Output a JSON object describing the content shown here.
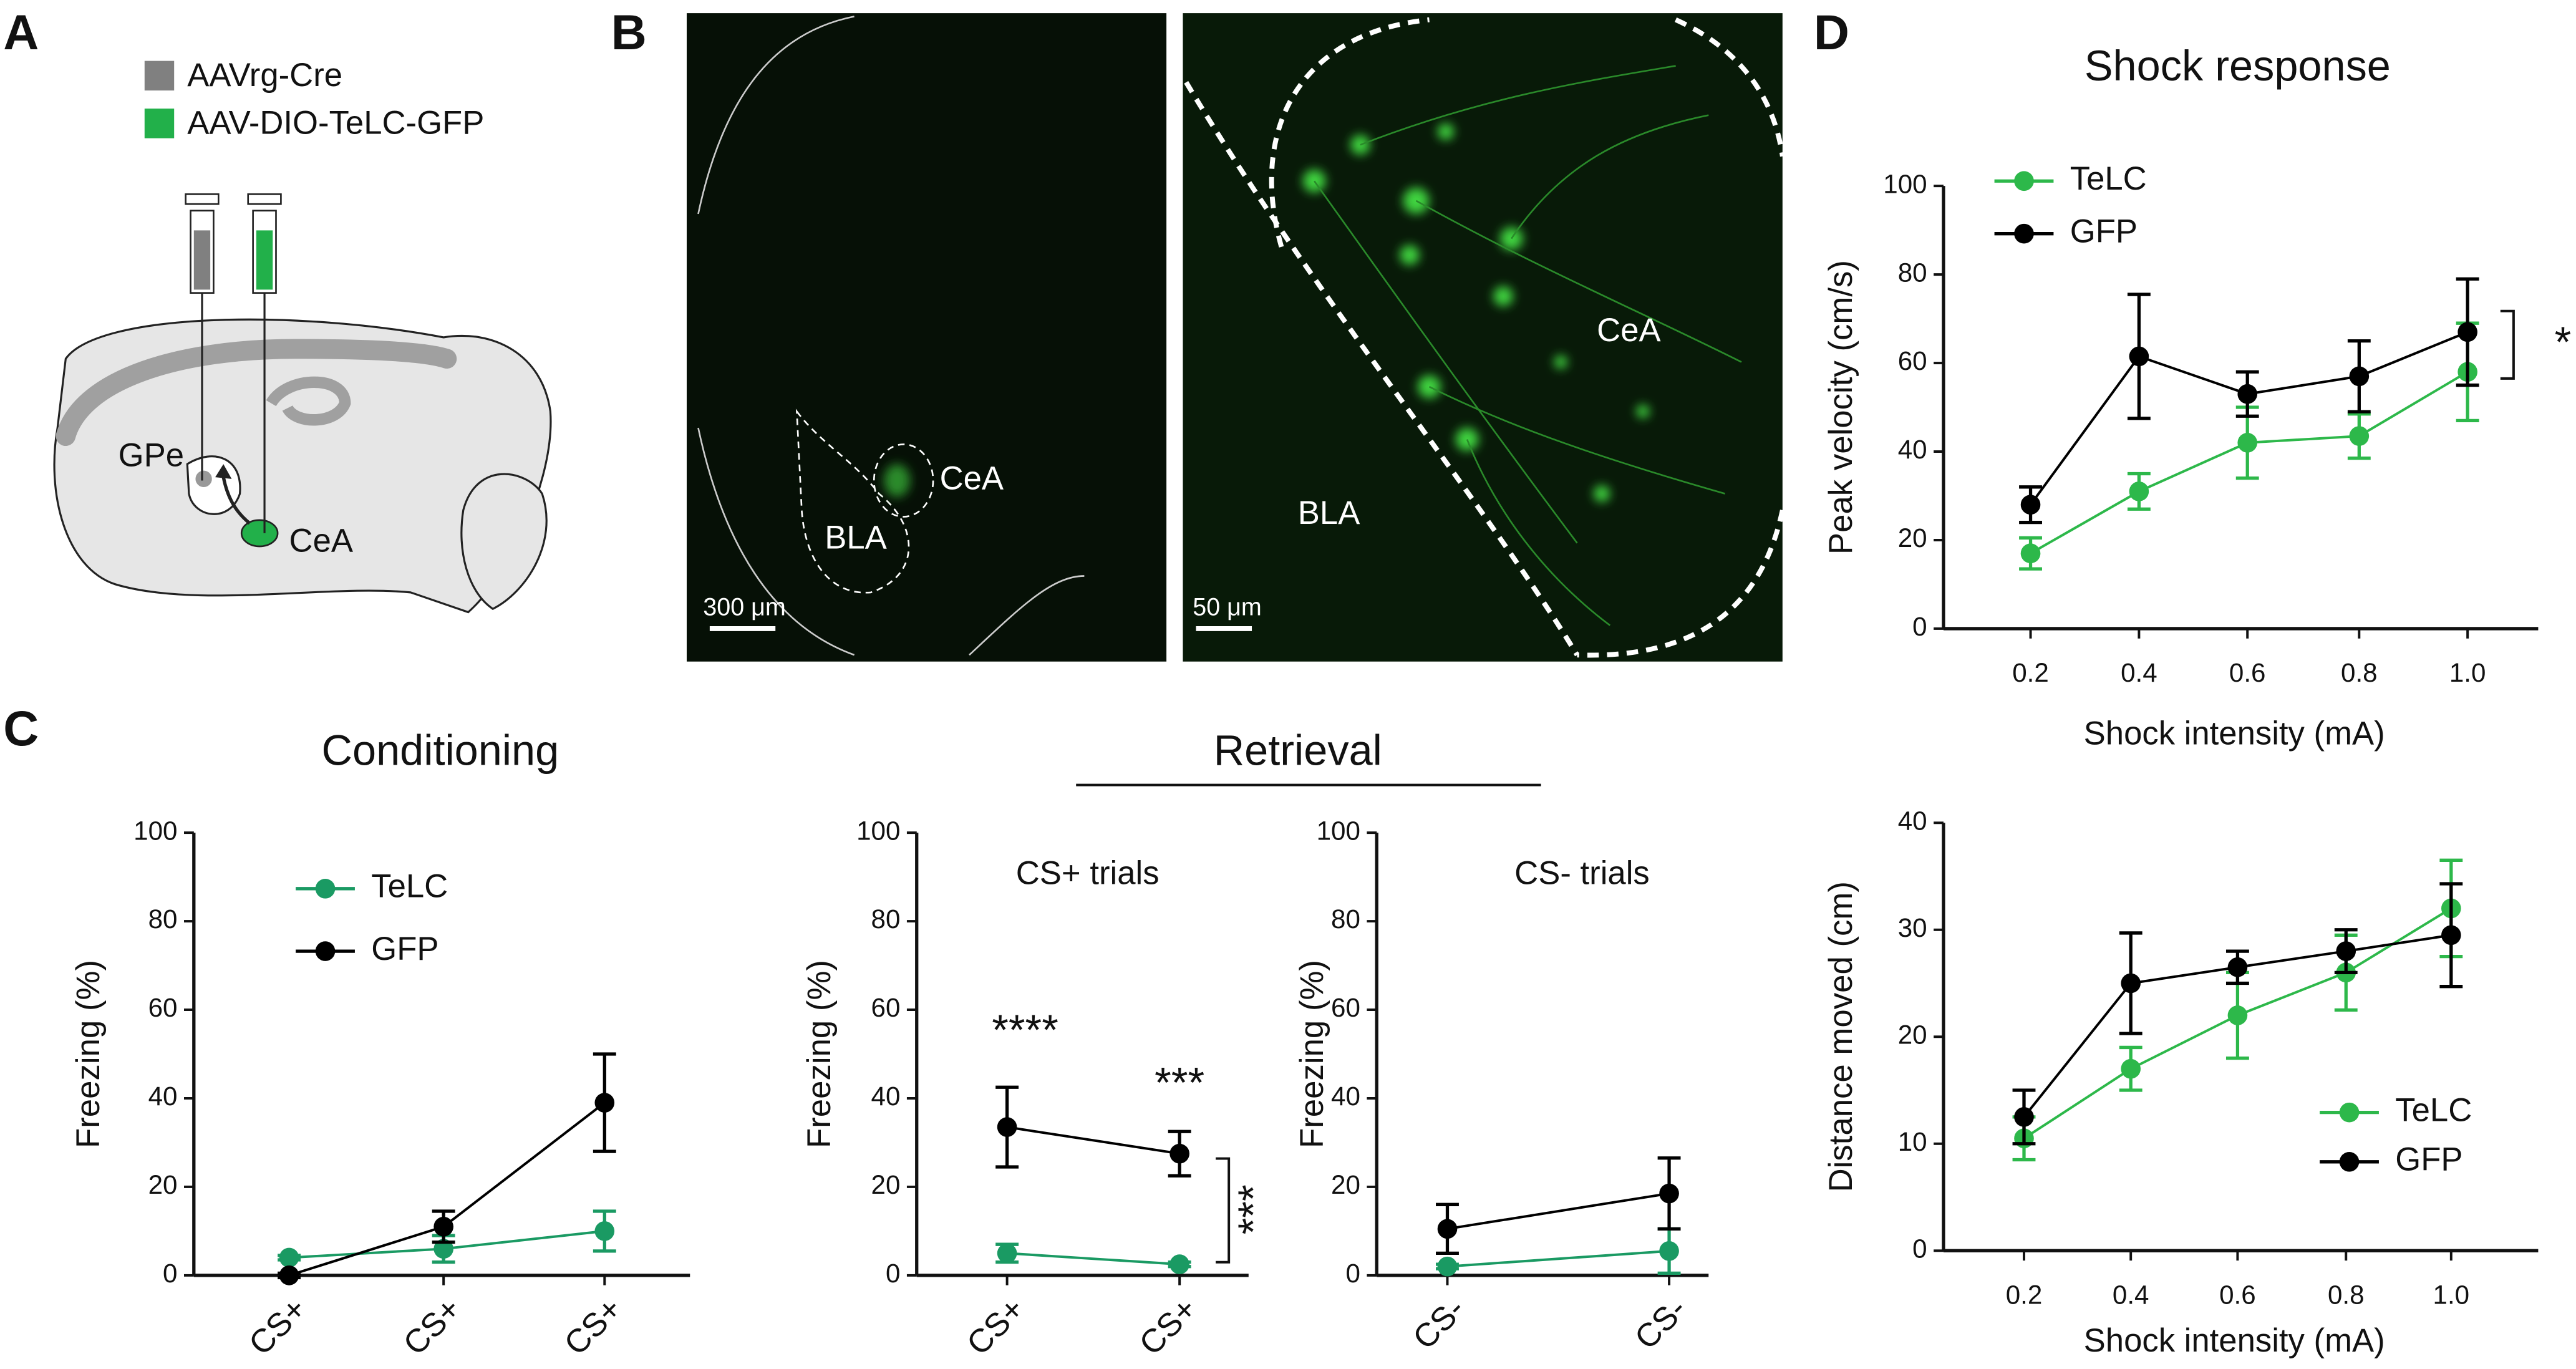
{
  "figure": {
    "panel_labels": [
      "A",
      "B",
      "C",
      "D"
    ],
    "panel_a": {
      "legend": [
        "AAVrg-Cre",
        "AAV-DIO-TeLC-GFP"
      ],
      "legend_colors": [
        "#808080",
        "#22b04a"
      ],
      "labels": [
        "GPe",
        "CeA"
      ]
    },
    "panel_b": {
      "labels": [
        "CeA",
        "BLA",
        "CeA",
        "BLA"
      ],
      "scale_bars": [
        "300 μm",
        "50 μm"
      ]
    },
    "retrieval_title": "Retrieval"
  },
  "chart_data": [
    {
      "type": "line",
      "title": "Conditioning",
      "ylabel": "Freezing (%)",
      "categories": [
        "CS+",
        "CS+",
        "CS+"
      ],
      "series": [
        {
          "name": "TeLC",
          "color": "#1a9a63",
          "values": [
            4,
            6,
            10
          ],
          "errors": [
            0.5,
            3,
            4.5
          ]
        },
        {
          "name": "GFP",
          "color": "#000000",
          "values": [
            0,
            11,
            39
          ],
          "errors": [
            0.5,
            3.5,
            11
          ]
        }
      ],
      "ylim": [
        0,
        100
      ],
      "yticks": [
        0,
        20,
        40,
        60,
        80,
        100
      ],
      "legend": "upper left"
    },
    {
      "type": "line",
      "title": "CS+ trials",
      "ylabel": "Freezing (%)",
      "categories": [
        "CS+",
        "CS+"
      ],
      "series": [
        {
          "color": "#1a9a63",
          "values": [
            5,
            2.5
          ],
          "errors": [
            2,
            0.5
          ]
        },
        {
          "color": "#000000",
          "values": [
            33.5,
            27.5
          ],
          "errors": [
            9,
            5
          ]
        }
      ],
      "ylim": [
        0,
        100
      ],
      "yticks": [
        0,
        20,
        40,
        60,
        80,
        100
      ],
      "annotations": [
        "****",
        "***"
      ],
      "bracket_annotation": "***"
    },
    {
      "type": "line",
      "title": "CS- trials",
      "ylabel": "Freezing (%)",
      "categories": [
        "CS-",
        "CS-"
      ],
      "series": [
        {
          "color": "#1a9a63",
          "values": [
            2,
            5.5
          ],
          "errors": [
            0.5,
            5
          ]
        },
        {
          "color": "#000000",
          "values": [
            10.5,
            18.5
          ],
          "errors": [
            5.5,
            8
          ]
        }
      ],
      "ylim": [
        0,
        100
      ],
      "yticks": [
        0,
        20,
        40,
        60,
        80,
        100
      ]
    },
    {
      "type": "line",
      "title": "Shock response",
      "xlabel": "Shock intensity (mA)",
      "ylabel": "Peak velocity (cm/s)",
      "categories": [
        "0.2",
        "0.4",
        "0.6",
        "0.8",
        "1.0"
      ],
      "series": [
        {
          "name": "TeLC",
          "color": "#2db84a",
          "values": [
            17,
            31,
            42,
            43.5,
            58
          ],
          "errors": [
            3.5,
            4,
            8,
            5,
            11
          ]
        },
        {
          "name": "GFP",
          "color": "#000000",
          "values": [
            28,
            61.5,
            53,
            57,
            67
          ],
          "errors": [
            4,
            14,
            5,
            8,
            12
          ]
        }
      ],
      "ylim": [
        0,
        100
      ],
      "yticks": [
        0,
        20,
        40,
        60,
        80,
        100
      ],
      "legend": "upper left",
      "bracket_annotation": "*"
    },
    {
      "type": "line",
      "xlabel": "Shock intensity (mA)",
      "ylabel": "Distance moved (cm)",
      "categories": [
        "0.2",
        "0.4",
        "0.6",
        "0.8",
        "1.0"
      ],
      "series": [
        {
          "name": "TeLC",
          "color": "#2db84a",
          "values": [
            10.5,
            17,
            22,
            26,
            32
          ],
          "errors": [
            2,
            2,
            4,
            3.5,
            4.5
          ]
        },
        {
          "name": "GFP",
          "color": "#000000",
          "values": [
            12.5,
            25,
            26.5,
            28,
            29.5
          ],
          "errors": [
            2.5,
            4.7,
            1.5,
            2,
            4.8
          ]
        }
      ],
      "ylim": [
        0,
        40
      ],
      "yticks": [
        0,
        10,
        20,
        30,
        40
      ],
      "legend": "lower right"
    }
  ]
}
